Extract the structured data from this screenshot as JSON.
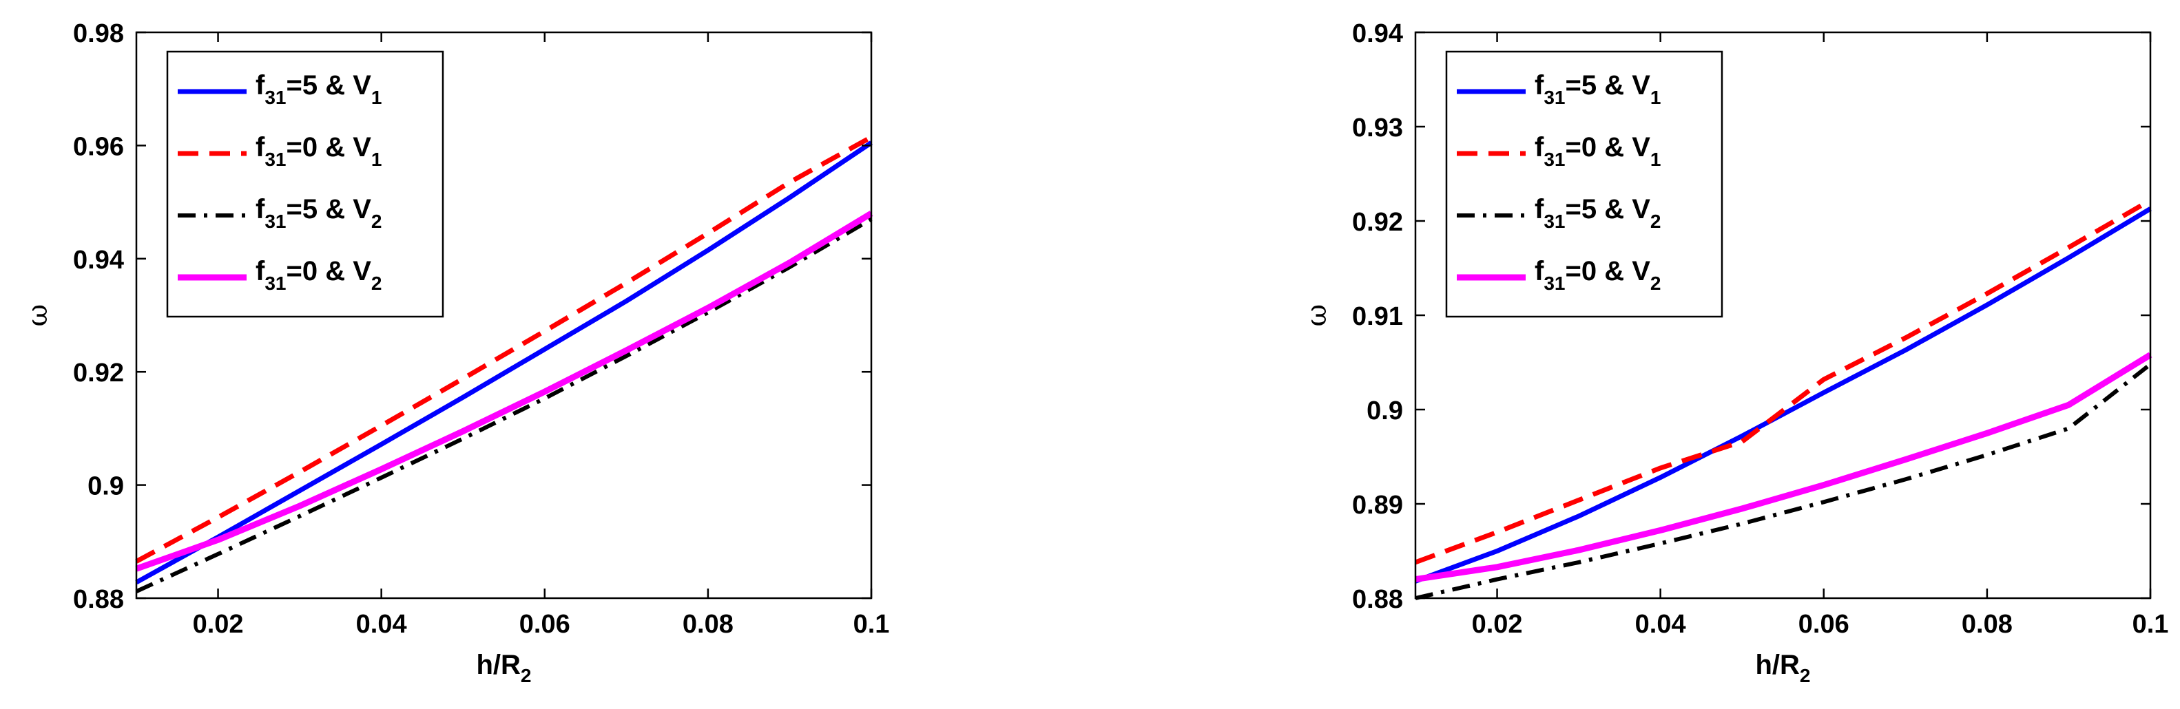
{
  "chart_data": [
    {
      "type": "line",
      "xlabel": "h/R",
      "xlabel_sub": "2",
      "ylabel": "ω",
      "xlim": [
        0.01,
        0.1
      ],
      "ylim": [
        0.88,
        0.98
      ],
      "xticks": [
        0.02,
        0.04,
        0.06,
        0.08,
        0.1
      ],
      "xtick_labels": [
        "0.02",
        "0.04",
        "0.06",
        "0.08",
        "0.1"
      ],
      "yticks": [
        0.88,
        0.9,
        0.92,
        0.94,
        0.96,
        0.98
      ],
      "ytick_labels": [
        "0.88",
        "0.9",
        "0.92",
        "0.94",
        "0.96",
        "0.98"
      ],
      "grid": false,
      "legend_position": "top-left",
      "x": [
        0.01,
        0.02,
        0.03,
        0.04,
        0.05,
        0.06,
        0.07,
        0.08,
        0.09,
        0.1
      ],
      "series": [
        {
          "label_main": "f",
          "label_sub": "31",
          "label_mid": "=5 & V",
          "label_sub2": "1",
          "color": "#0000ff",
          "style": "solid",
          "values": [
            0.8828,
            0.8908,
            0.899,
            0.9072,
            0.9155,
            0.924,
            0.9325,
            0.9415,
            0.9508,
            0.9605
          ]
        },
        {
          "label_main": "f",
          "label_sub": "31",
          "label_mid": "=0 & V",
          "label_sub2": "1",
          "color": "#ff0000",
          "style": "dashed",
          "values": [
            0.8865,
            0.8943,
            0.9023,
            0.9105,
            0.9188,
            0.9272,
            0.9357,
            0.9445,
            0.9535,
            0.9615
          ]
        },
        {
          "label_main": "f",
          "label_sub": "31",
          "label_mid": "=5 & V",
          "label_sub2": "2",
          "color": "#000000",
          "style": "dashdot",
          "values": [
            0.8812,
            0.8878,
            0.8945,
            0.9013,
            0.9082,
            0.9153,
            0.9228,
            0.9305,
            0.9385,
            0.947
          ]
        },
        {
          "label_main": "f",
          "label_sub": "31",
          "label_mid": "=0 & V",
          "label_sub2": "2",
          "color": "#ff00ff",
          "style": "solid-thick",
          "values": [
            0.8852,
            0.8903,
            0.8963,
            0.9028,
            0.9095,
            0.9165,
            0.9238,
            0.9313,
            0.9393,
            0.948
          ]
        }
      ]
    },
    {
      "type": "line",
      "xlabel": "h/R",
      "xlabel_sub": "2",
      "ylabel": "ω",
      "xlim": [
        0.01,
        0.1
      ],
      "ylim": [
        0.88,
        0.94
      ],
      "xticks": [
        0.02,
        0.04,
        0.06,
        0.08,
        0.1
      ],
      "xtick_labels": [
        "0.02",
        "0.04",
        "0.06",
        "0.08",
        "0.1"
      ],
      "yticks": [
        0.88,
        0.89,
        0.9,
        0.91,
        0.92,
        0.93,
        0.94
      ],
      "ytick_labels": [
        "0.88",
        "0.89",
        "0.9",
        "0.91",
        "0.92",
        "0.93",
        "0.94"
      ],
      "grid": false,
      "legend_position": "top-left",
      "x": [
        0.01,
        0.02,
        0.03,
        0.04,
        0.05,
        0.06,
        0.07,
        0.08,
        0.09,
        0.1
      ],
      "series": [
        {
          "label_main": "f",
          "label_sub": "31",
          "label_mid": "=5 & V",
          "label_sub2": "1",
          "color": "#0000ff",
          "style": "solid",
          "values": [
            0.8818,
            0.885,
            0.8887,
            0.8928,
            0.8972,
            0.9018,
            0.9063,
            0.9111,
            0.9161,
            0.9213
          ]
        },
        {
          "label_main": "f",
          "label_sub": "31",
          "label_mid": "=0 & V",
          "label_sub2": "1",
          "color": "#ff0000",
          "style": "dashed",
          "values": [
            0.8838,
            0.887,
            0.8904,
            0.8938,
            0.8966,
            0.9032,
            0.9076,
            0.9123,
            0.9172,
            0.9222
          ]
        },
        {
          "label_main": "f",
          "label_sub": "31",
          "label_mid": "=5 & V",
          "label_sub2": "2",
          "color": "#000000",
          "style": "dashdot",
          "values": [
            0.88,
            0.882,
            0.8838,
            0.8858,
            0.8879,
            0.8902,
            0.8926,
            0.8952,
            0.898,
            0.9048
          ]
        },
        {
          "label_main": "f",
          "label_sub": "31",
          "label_mid": "=0 & V",
          "label_sub2": "2",
          "color": "#ff00ff",
          "style": "solid-thick",
          "values": [
            0.882,
            0.8833,
            0.8851,
            0.8872,
            0.8895,
            0.892,
            0.8947,
            0.8975,
            0.9005,
            0.9058
          ]
        }
      ]
    }
  ]
}
